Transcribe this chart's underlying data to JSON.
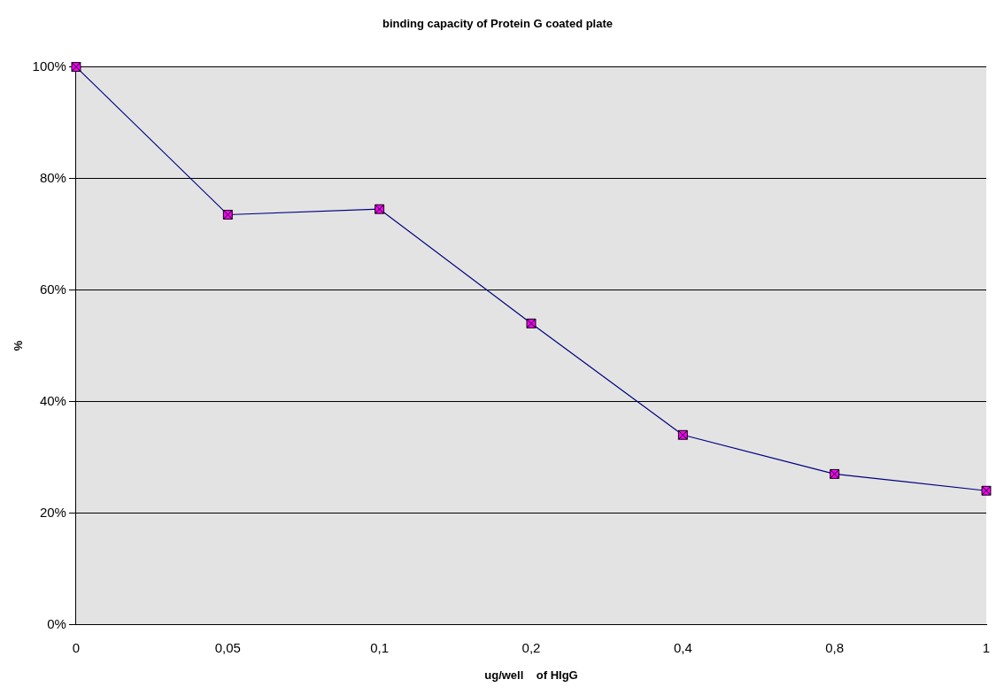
{
  "chart_data": {
    "type": "line",
    "title": "binding capacity of Protein G coated plate",
    "xlabel": "ug/well    of HIgG",
    "ylabel": "%",
    "categories": [
      "0",
      "0,05",
      "0,1",
      "0,2",
      "0,4",
      "0,8",
      "1"
    ],
    "series": [
      {
        "color": "#000080",
        "values": [
          100,
          73.5,
          74.5,
          54,
          34,
          27,
          24
        ]
      }
    ],
    "ylim": [
      0,
      100
    ],
    "yticks": [
      {
        "value": 0,
        "label": "0%"
      },
      {
        "value": 20,
        "label": "20%"
      },
      {
        "value": 40,
        "label": "40%"
      },
      {
        "value": 60,
        "label": "60%"
      },
      {
        "value": 80,
        "label": "80%"
      },
      {
        "value": 100,
        "label": "100%"
      }
    ],
    "grid": "y",
    "marker": "square",
    "line_style": "solid"
  }
}
